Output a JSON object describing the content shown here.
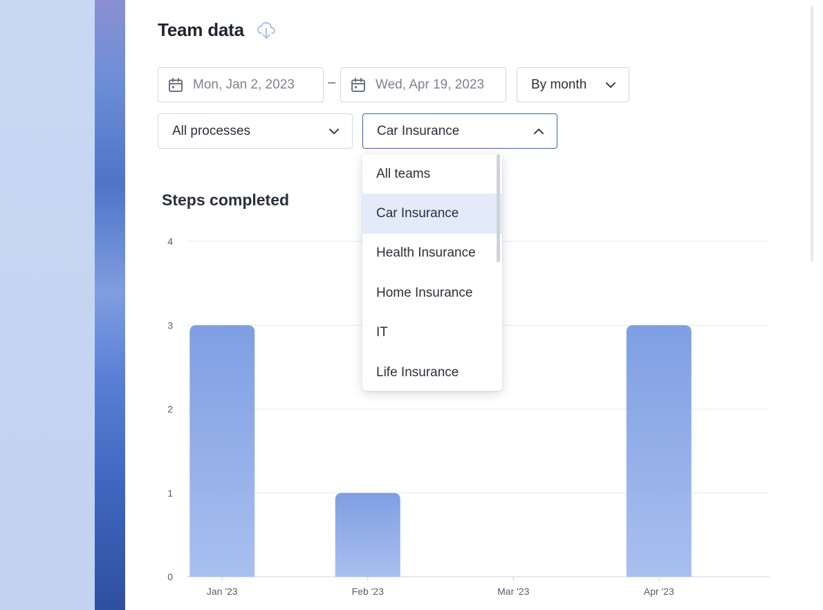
{
  "page": {
    "title": "Team data",
    "download_icon": "cloud-download-icon"
  },
  "filters": {
    "start_date": "Mon, Jan 2, 2023",
    "date_separator": "–",
    "end_date": "Wed, Apr 19, 2023",
    "interval": "By month",
    "process": "All processes",
    "team": "Car Insurance"
  },
  "team_menu": {
    "items": [
      "All teams",
      "Car Insurance",
      "Health Insurance",
      "Home Insurance",
      "IT",
      "Life Insurance"
    ],
    "selected": "Car Insurance"
  },
  "colors": {
    "bar_top": "#7f9fe3",
    "bar_bottom": "#a9bfef",
    "grid": "#e4e7ec",
    "selected_bg": "#e3ebf8"
  },
  "chart_data": {
    "type": "bar",
    "title": "Steps completed",
    "categories": [
      "Jan '23",
      "Feb '23",
      "Mar '23",
      "Apr '23"
    ],
    "values": [
      3,
      1,
      0,
      3
    ],
    "ylim": [
      0,
      4
    ],
    "yticks": [
      0,
      1,
      2,
      3,
      4
    ],
    "grid": true,
    "xlabel": "",
    "ylabel": ""
  }
}
